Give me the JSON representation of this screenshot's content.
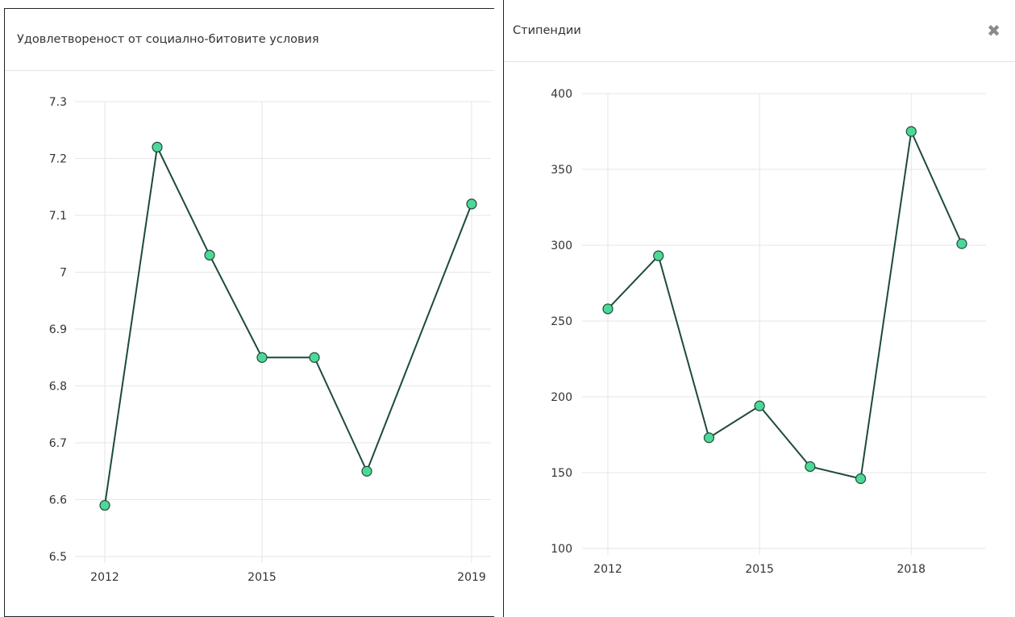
{
  "colors": {
    "line": "#1d4a3c",
    "marker_fill": "#4dd898",
    "marker_stroke": "#1d4a3c",
    "grid": "#e6e6e6"
  },
  "icons": {
    "close": "close-icon"
  },
  "left_panel": {
    "title": "Удовлетвореност от социално-битовите условия"
  },
  "right_panel": {
    "title": "Стипендии",
    "close_label": "✖"
  },
  "chart_data": [
    {
      "type": "line",
      "title": "Удовлетвореност от социално-битовите условия",
      "xlabel": "",
      "ylabel": "",
      "x": [
        2012,
        2013,
        2014,
        2015,
        2016,
        2017,
        2019
      ],
      "values": [
        6.59,
        7.22,
        7.03,
        6.85,
        6.85,
        6.65,
        7.12
      ],
      "ylim": [
        6.5,
        7.3
      ],
      "yticks": [
        "6.5",
        "6.6",
        "6.7",
        "6.8",
        "6.9",
        "7",
        "7.1",
        "7.2",
        "7.3"
      ],
      "xticks": [
        "2012",
        "2015",
        "2019"
      ],
      "grid": true
    },
    {
      "type": "line",
      "title": "Стипендии",
      "xlabel": "",
      "ylabel": "",
      "x": [
        2012,
        2013,
        2014,
        2015,
        2016,
        2017,
        2018,
        2019
      ],
      "values": [
        258,
        293,
        173,
        194,
        154,
        146,
        375,
        301
      ],
      "ylim": [
        100,
        400
      ],
      "yticks": [
        "100",
        "150",
        "200",
        "250",
        "300",
        "350",
        "400"
      ],
      "xticks": [
        "2012",
        "2015",
        "2018"
      ],
      "grid": true
    }
  ]
}
